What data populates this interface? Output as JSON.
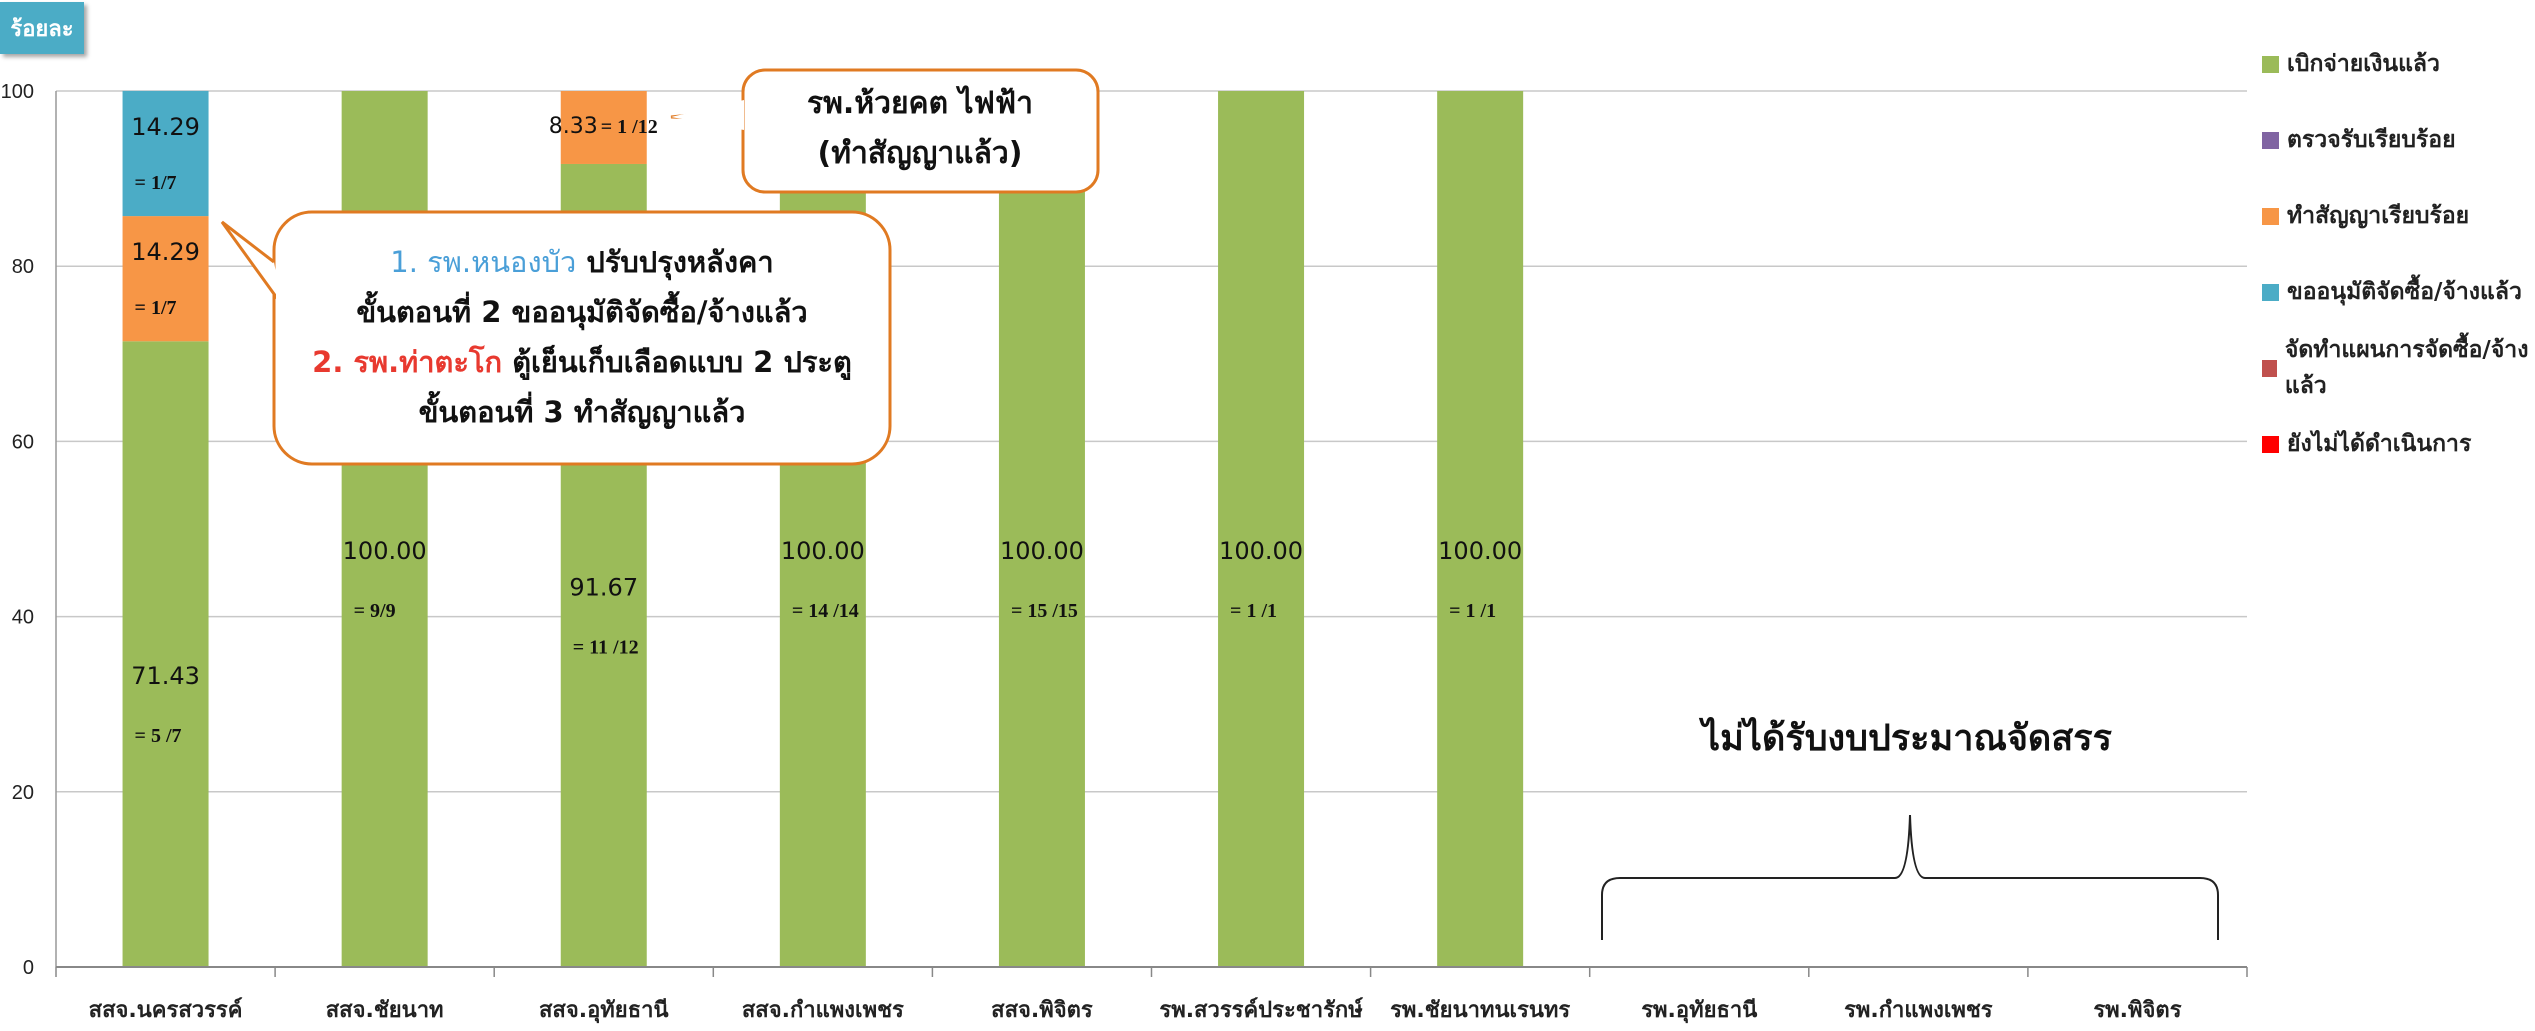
{
  "unit_label": "ร้อยละ",
  "legend_title": "",
  "chart_data": {
    "type": "bar",
    "stacked": true,
    "ylim": [
      0,
      100
    ],
    "yticks": [
      0,
      20,
      40,
      60,
      80,
      100
    ],
    "grid": true,
    "legend_position": "right",
    "categories": [
      "สสจ.นครสวรรค์",
      "สสจ.ชัยนาท",
      "สสจ.อุทัยธานี",
      "สสจ.กำแพงเพชร",
      "สสจ.พิจิตร",
      "รพ.สวรรค์ประชารักษ์",
      "รพ.ชัยนาทนเรนทร",
      "รพ.อุทัยธานี",
      "รพ.กำแพงเพชร",
      "รพ.พิจิตร"
    ],
    "series": [
      {
        "name": "เบิกจ่ายเงินแล้ว",
        "color": "#9bbb59",
        "values": [
          71.43,
          100.0,
          91.67,
          100.0,
          100.0,
          100.0,
          100.0,
          0,
          0,
          0
        ],
        "labels": [
          "71.43",
          "100.00",
          "91.67",
          "100.00",
          "100.00",
          "100.00",
          "100.00",
          "",
          "",
          ""
        ],
        "fractions": [
          "= 5 /7",
          "= 9/9",
          "= 11 /12",
          "= 14 /14",
          "= 15 /15",
          "= 1 /1",
          "= 1 /1",
          "",
          "",
          ""
        ]
      },
      {
        "name": "ตรวจรับเรียบร้อย",
        "color": "#8064a2",
        "values": [
          0,
          0,
          0,
          0,
          0,
          0,
          0,
          0,
          0,
          0
        ],
        "labels": [],
        "fractions": []
      },
      {
        "name": "ทำสัญญาเรียบร้อย",
        "color": "#f79646",
        "values": [
          14.29,
          0,
          8.33,
          0,
          0,
          0,
          0,
          0,
          0,
          0
        ],
        "labels": [
          "14.29",
          "",
          "8.33",
          "",
          "",
          "",
          "",
          "",
          "",
          ""
        ],
        "fractions": [
          "= 1/7",
          "",
          "= 1 /12",
          "",
          "",
          "",
          "",
          "",
          "",
          ""
        ]
      },
      {
        "name": "ขออนุมัติจัดซื้อ/จ้างแล้ว",
        "color": "#4bacc6",
        "values": [
          14.29,
          0,
          0,
          0,
          0,
          0,
          0,
          0,
          0,
          0
        ],
        "labels": [
          "14.29",
          "",
          "",
          "",
          "",
          "",
          "",
          "",
          "",
          ""
        ],
        "fractions": [
          "= 1/7",
          "",
          "",
          "",
          "",
          "",
          "",
          "",
          "",
          ""
        ]
      },
      {
        "name": "จัดทำแผนการจัดซื้อ/จ้างแล้ว",
        "color": "#c0504d",
        "values": [
          0,
          0,
          0,
          0,
          0,
          0,
          0,
          0,
          0,
          0
        ],
        "labels": [],
        "fractions": []
      },
      {
        "name": "ยังไม่ได้ดำเนินการ",
        "color": "#ff0000",
        "values": [
          0,
          0,
          0,
          0,
          0,
          0,
          0,
          0,
          0,
          0
        ],
        "labels": [],
        "fractions": []
      }
    ],
    "annotations": {
      "no_budget": "ไม่ได้รับงบประมาณจัดสรร",
      "callout_top": {
        "line1": "รพ.ห้วยคต  ไฟฟ้า",
        "line2": "(ทำสัญญาแล้ว)"
      },
      "callout_main": {
        "l1_blue": "1. รพ.หนองบัว",
        "l1_rest": " ปรับปรุงหลังคา",
        "l2": "ขั้นตอนที่ 2 ขออนุมัติจัดซื้อ/จ้างแล้ว",
        "l3_red": "2. รพ.ท่าตะโก",
        "l3_rest": " ตู้เย็นเก็บเลือดแบบ 2 ประตู",
        "l4": "ขั้นตอนที่ 3 ทำสัญญาแล้ว"
      }
    }
  }
}
